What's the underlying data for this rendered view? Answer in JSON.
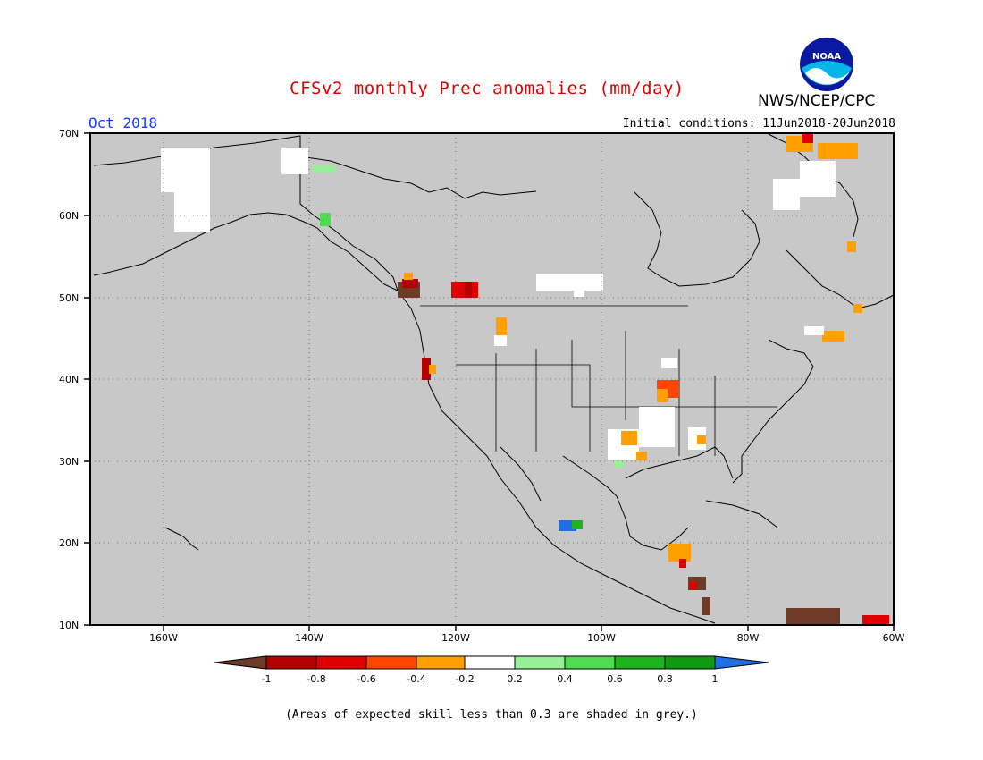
{
  "header": {
    "title": "CFSv2 monthly Prec anomalies (mm/day)",
    "agency": "NWS/NCEP/CPC",
    "logo_text": "NOAA",
    "target_month": "Oct 2018",
    "initial_conditions": "Initial conditions: 11Jun2018-20Jun2018"
  },
  "map": {
    "lon_range": [
      -170,
      -60
    ],
    "lat_range": [
      10,
      70
    ],
    "grid": "dotted",
    "background_color": "#c8c8c8",
    "lat_labels": [
      "70N",
      "60N",
      "50N",
      "40N",
      "30N",
      "20N",
      "10N"
    ],
    "lon_labels": [
      "160W",
      "140W",
      "120W",
      "100W",
      "80W",
      "60W"
    ]
  },
  "legend": {
    "tick_labels": [
      "-1",
      "-0.8",
      "-0.6",
      "-0.4",
      "-0.2",
      "0.2",
      "0.4",
      "0.6",
      "0.8",
      "1"
    ],
    "colors": [
      "#6e3b28",
      "#b40000",
      "#e00000",
      "#ff4500",
      "#ffa000",
      "#ffffff",
      "#96f096",
      "#50dc50",
      "#1eb41e",
      "#0f9b0f",
      "#1f6ee6"
    ]
  },
  "footnote": "(Areas of expected skill less than 0.3 are shaded in grey.)"
}
